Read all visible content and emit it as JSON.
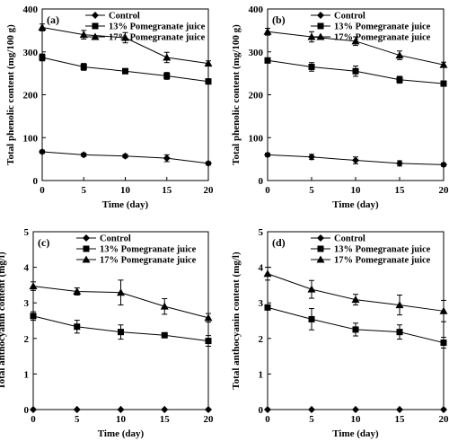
{
  "chart_data": [
    {
      "type": "line",
      "panel_label": "(a)",
      "xlabel": "Time (day)",
      "ylabel": "Total phenolic content (mg/100 g)",
      "x": [
        0,
        5,
        10,
        15,
        20
      ],
      "xlim": [
        0,
        20
      ],
      "ylim": [
        0,
        400
      ],
      "xticks": [
        0,
        5,
        10,
        15,
        20
      ],
      "yticks": [
        0,
        100,
        200,
        300,
        400
      ],
      "legend_position": "top-left",
      "series": [
        {
          "name": "Control",
          "marker": "diamond",
          "values": [
            67,
            60,
            57,
            52,
            40
          ],
          "errors": [
            4,
            4,
            4,
            8,
            4
          ]
        },
        {
          "name": "13% Pomegranate juice",
          "marker": "square",
          "values": [
            287,
            265,
            255,
            244,
            231
          ],
          "errors": [
            8,
            8,
            6,
            8,
            6
          ]
        },
        {
          "name": "17% Pomegranate juice",
          "marker": "triangle",
          "values": [
            357,
            340,
            333,
            287,
            273
          ],
          "errors": [
            8,
            10,
            12,
            12,
            6
          ]
        }
      ]
    },
    {
      "type": "line",
      "panel_label": "(b)",
      "xlabel": "Time (day)",
      "ylabel": "Total phenolic content (mg/100 g)",
      "x": [
        0,
        5,
        10,
        15,
        20
      ],
      "xlim": [
        0,
        20
      ],
      "ylim": [
        0,
        400
      ],
      "xticks": [
        0,
        5,
        10,
        15,
        20
      ],
      "yticks": [
        0,
        100,
        200,
        300,
        400
      ],
      "legend_position": "top-left",
      "series": [
        {
          "name": "Control",
          "marker": "diamond",
          "values": [
            60,
            55,
            47,
            40,
            37
          ],
          "errors": [
            4,
            6,
            8,
            6,
            4
          ]
        },
        {
          "name": "13% Pomegranate juice",
          "marker": "square",
          "values": [
            280,
            265,
            255,
            235,
            226
          ],
          "errors": [
            6,
            10,
            12,
            8,
            6
          ]
        },
        {
          "name": "17% Pomegranate juice",
          "marker": "triangle",
          "values": [
            347,
            335,
            325,
            292,
            270
          ],
          "errors": [
            8,
            12,
            10,
            10,
            6
          ]
        }
      ]
    },
    {
      "type": "line",
      "panel_label": "(c)",
      "xlabel": "Time (day)",
      "ylabel": "Total anthocyanin content (mg/l)",
      "x": [
        0,
        5,
        10,
        15,
        20
      ],
      "xlim": [
        0,
        20
      ],
      "ylim": [
        0,
        5
      ],
      "xticks": [
        0,
        5,
        10,
        15,
        20
      ],
      "yticks": [
        0,
        1,
        2,
        3,
        4,
        5
      ],
      "legend_position": "top-left",
      "series": [
        {
          "name": "Control",
          "marker": "diamond",
          "values": [
            0,
            0,
            0,
            0,
            0
          ],
          "errors": [
            0,
            0,
            0,
            0,
            0
          ]
        },
        {
          "name": "13% Pomegranate juice",
          "marker": "square",
          "values": [
            2.63,
            2.33,
            2.18,
            2.09,
            1.93
          ],
          "errors": [
            0.12,
            0.18,
            0.2,
            0.04,
            0.15
          ]
        },
        {
          "name": "17% Pomegranate juice",
          "marker": "triangle",
          "values": [
            3.47,
            3.32,
            3.29,
            2.9,
            2.58
          ],
          "errors": [
            0.12,
            0.1,
            0.35,
            0.22,
            0.12
          ]
        }
      ]
    },
    {
      "type": "line",
      "panel_label": "(d)",
      "xlabel": "Time (day)",
      "ylabel": "Total anthocyanin content (mg/l)",
      "x": [
        0,
        5,
        10,
        15,
        20
      ],
      "xlim": [
        0,
        20
      ],
      "ylim": [
        0,
        5
      ],
      "xticks": [
        0,
        5,
        10,
        15,
        20
      ],
      "yticks": [
        0,
        1,
        2,
        3,
        4,
        5
      ],
      "legend_position": "top-left",
      "series": [
        {
          "name": "Control",
          "marker": "diamond",
          "values": [
            0,
            0,
            0,
            0,
            0
          ],
          "errors": [
            0,
            0,
            0,
            0,
            0
          ]
        },
        {
          "name": "13% Pomegranate juice",
          "marker": "square",
          "values": [
            2.87,
            2.54,
            2.25,
            2.18,
            1.88
          ],
          "errors": [
            0.06,
            0.3,
            0.18,
            0.2,
            0.15
          ]
        },
        {
          "name": "17% Pomegranate juice",
          "marker": "triangle",
          "values": [
            3.82,
            3.38,
            3.09,
            2.94,
            2.77
          ],
          "errors": [
            0.18,
            0.25,
            0.15,
            0.28,
            0.3
          ]
        }
      ]
    }
  ]
}
